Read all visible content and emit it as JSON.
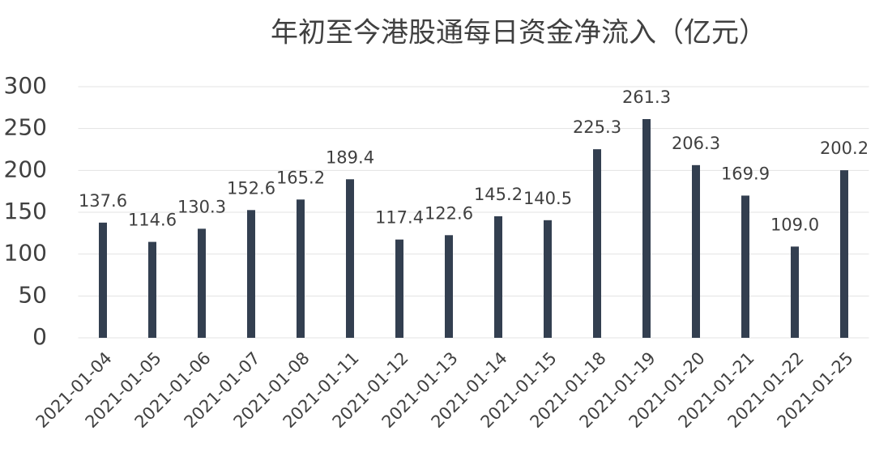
{
  "chart_data": {
    "type": "bar",
    "title": "年初至今港股通每日资金净流入（亿元）",
    "categories": [
      "2021-01-04",
      "2021-01-05",
      "2021-01-06",
      "2021-01-07",
      "2021-01-08",
      "2021-01-11",
      "2021-01-12",
      "2021-01-13",
      "2021-01-14",
      "2021-01-15",
      "2021-01-18",
      "2021-01-19",
      "2021-01-20",
      "2021-01-21",
      "2021-01-22",
      "2021-01-25"
    ],
    "values": [
      137.6,
      114.6,
      130.3,
      152.6,
      165.2,
      189.4,
      117.4,
      122.6,
      145.2,
      140.5,
      225.3,
      261.3,
      206.3,
      169.9,
      109.0,
      200.2
    ],
    "value_labels": [
      "137.6",
      "114.6",
      "130.3",
      "152.6",
      "165.2",
      "189.4",
      "117.4",
      "122.6",
      "145.2",
      "140.5",
      "225.3",
      "261.3",
      "206.3",
      "169.9",
      "109.0",
      "200.2"
    ],
    "color": "#333f50",
    "ylim": [
      0,
      300
    ],
    "yticks": [
      0,
      50,
      100,
      150,
      200,
      250,
      300
    ],
    "grid": true
  }
}
